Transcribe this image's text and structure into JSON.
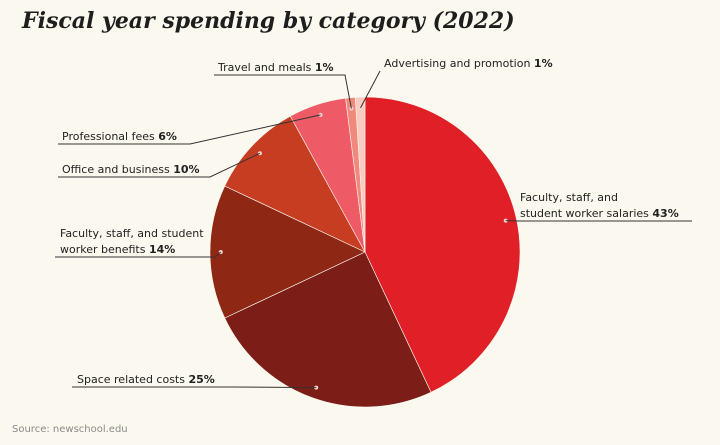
{
  "title": "Fiscal year spending by category (2022)",
  "source": "Source: newschool.edu",
  "chart_data": {
    "type": "pie",
    "title": "Fiscal year spending by category (2022)",
    "slices": [
      {
        "label": "Faculty, staff, and student worker salaries",
        "line1": "Faculty, staff, and",
        "line2": "student worker salaries",
        "value": 43,
        "pct": "43%",
        "color": "#e01f26"
      },
      {
        "label": "Space related costs",
        "line1": "Space related costs",
        "line2": "",
        "value": 25,
        "pct": "25%",
        "color": "#7c1d17"
      },
      {
        "label": "Faculty, staff, and student worker benefits",
        "line1": "Faculty, staff, and student",
        "line2": "worker benefits",
        "value": 14,
        "pct": "14%",
        "color": "#8e2713"
      },
      {
        "label": "Office and business",
        "line1": "Office and business",
        "line2": "",
        "value": 10,
        "pct": "10%",
        "color": "#c63d22"
      },
      {
        "label": "Professional fees",
        "line1": "Professional fees",
        "line2": "",
        "value": 6,
        "pct": "6%",
        "color": "#ee5a66"
      },
      {
        "label": "Travel and meals",
        "line1": "Travel and meals",
        "line2": "",
        "value": 1,
        "pct": "1%",
        "color": "#f1887c"
      },
      {
        "label": "Advertising and promotion",
        "line1": "Advertising and promotion",
        "line2": "",
        "value": 1,
        "pct": "1%",
        "color": "#f7cbbf"
      }
    ]
  }
}
